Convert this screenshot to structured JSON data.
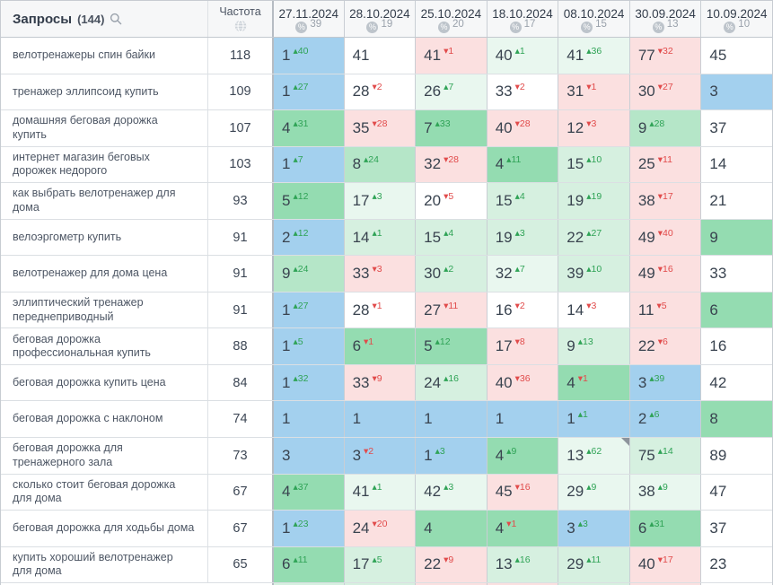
{
  "header": {
    "queries_label": "Запросы",
    "queries_count": "(144)",
    "frequency_label": "Частота",
    "icons": {
      "search": "magnifier-icon",
      "frequency": "globe-icon",
      "percent": "percent-icon",
      "note": "corner-note-marker"
    },
    "date_columns": [
      {
        "date": "27.11.2024",
        "count": "39"
      },
      {
        "date": "28.10.2024",
        "count": "19"
      },
      {
        "date": "25.10.2024",
        "count": "20"
      },
      {
        "date": "18.10.2024",
        "count": "17"
      },
      {
        "date": "08.10.2024",
        "count": "15"
      },
      {
        "date": "30.09.2024",
        "count": "13"
      },
      {
        "date": "10.09.2024",
        "count": "10"
      }
    ]
  },
  "colors": {
    "blue": "#a3d0ee",
    "green_strong": "#94dcb1",
    "green_mid": "#b5e6c8",
    "green_light": "#d6f0e0",
    "green_pale": "#e9f7ef",
    "pink": "#fbe0e0",
    "white": "#ffffff",
    "delta_up": "#2fa356",
    "delta_down": "#e14b4b",
    "note_marker": "#8d949c"
  },
  "rows": [
    {
      "query": "велотренажеры спин байки",
      "frequency": "118",
      "cells": [
        {
          "v": "1",
          "d": 40,
          "bg": "blue"
        },
        {
          "v": "41",
          "bg": "white"
        },
        {
          "v": "41",
          "d": -1,
          "bg": "pink"
        },
        {
          "v": "40",
          "d": 1,
          "bg": "green_pale"
        },
        {
          "v": "41",
          "d": 36,
          "bg": "green_pale"
        },
        {
          "v": "77",
          "d": -32,
          "bg": "pink"
        },
        {
          "v": "45",
          "bg": "white"
        }
      ]
    },
    {
      "query": "тренажер эллипсоид купить",
      "frequency": "109",
      "cells": [
        {
          "v": "1",
          "d": 27,
          "bg": "blue"
        },
        {
          "v": "28",
          "d": -2,
          "bg": "white"
        },
        {
          "v": "26",
          "d": 7,
          "bg": "green_pale"
        },
        {
          "v": "33",
          "d": -2,
          "bg": "white"
        },
        {
          "v": "31",
          "d": -1,
          "bg": "pink"
        },
        {
          "v": "30",
          "d": -27,
          "bg": "pink"
        },
        {
          "v": "3",
          "bg": "blue"
        }
      ]
    },
    {
      "query": "домашняя беговая дорожка купить",
      "frequency": "107",
      "cells": [
        {
          "v": "4",
          "d": 31,
          "bg": "green_strong"
        },
        {
          "v": "35",
          "d": -28,
          "bg": "pink"
        },
        {
          "v": "7",
          "d": 33,
          "bg": "green_strong"
        },
        {
          "v": "40",
          "d": -28,
          "bg": "pink"
        },
        {
          "v": "12",
          "d": -3,
          "bg": "pink"
        },
        {
          "v": "9",
          "d": 28,
          "bg": "green_mid"
        },
        {
          "v": "37",
          "bg": "white"
        }
      ]
    },
    {
      "query": "интернет магазин беговых дорожек недорого",
      "frequency": "103",
      "cells": [
        {
          "v": "1",
          "d": 7,
          "bg": "blue"
        },
        {
          "v": "8",
          "d": 24,
          "bg": "green_mid"
        },
        {
          "v": "32",
          "d": -28,
          "bg": "pink"
        },
        {
          "v": "4",
          "d": 11,
          "bg": "green_strong"
        },
        {
          "v": "15",
          "d": 10,
          "bg": "green_light"
        },
        {
          "v": "25",
          "d": -11,
          "bg": "pink"
        },
        {
          "v": "14",
          "bg": "white"
        }
      ]
    },
    {
      "query": "как выбрать велотренажер для дома",
      "frequency": "93",
      "cells": [
        {
          "v": "5",
          "d": 12,
          "bg": "green_strong"
        },
        {
          "v": "17",
          "d": 3,
          "bg": "green_pale"
        },
        {
          "v": "20",
          "d": -5,
          "bg": "white"
        },
        {
          "v": "15",
          "d": 4,
          "bg": "green_light"
        },
        {
          "v": "19",
          "d": 19,
          "bg": "green_light"
        },
        {
          "v": "38",
          "d": -17,
          "bg": "pink"
        },
        {
          "v": "21",
          "bg": "white"
        }
      ]
    },
    {
      "query": "велоэргометр купить",
      "frequency": "91",
      "cells": [
        {
          "v": "2",
          "d": 12,
          "bg": "blue"
        },
        {
          "v": "14",
          "d": 1,
          "bg": "green_light"
        },
        {
          "v": "15",
          "d": 4,
          "bg": "green_light"
        },
        {
          "v": "19",
          "d": 3,
          "bg": "green_light"
        },
        {
          "v": "22",
          "d": 27,
          "bg": "green_light"
        },
        {
          "v": "49",
          "d": -40,
          "bg": "pink"
        },
        {
          "v": "9",
          "bg": "green_strong"
        }
      ]
    },
    {
      "query": "велотренажер для дома цена",
      "frequency": "91",
      "cells": [
        {
          "v": "9",
          "d": 24,
          "bg": "green_mid"
        },
        {
          "v": "33",
          "d": -3,
          "bg": "pink"
        },
        {
          "v": "30",
          "d": 2,
          "bg": "green_light"
        },
        {
          "v": "32",
          "d": 7,
          "bg": "green_pale"
        },
        {
          "v": "39",
          "d": 10,
          "bg": "green_light"
        },
        {
          "v": "49",
          "d": -16,
          "bg": "pink"
        },
        {
          "v": "33",
          "bg": "white"
        }
      ]
    },
    {
      "query": "эллиптический тренажер переднеприводный",
      "frequency": "91",
      "cells": [
        {
          "v": "1",
          "d": 27,
          "bg": "blue"
        },
        {
          "v": "28",
          "d": -1,
          "bg": "white"
        },
        {
          "v": "27",
          "d": -11,
          "bg": "pink"
        },
        {
          "v": "16",
          "d": -2,
          "bg": "white"
        },
        {
          "v": "14",
          "d": -3,
          "bg": "white"
        },
        {
          "v": "11",
          "d": -5,
          "bg": "pink"
        },
        {
          "v": "6",
          "bg": "green_strong"
        }
      ]
    },
    {
      "query": "беговая дорожка профессиональная купить",
      "frequency": "88",
      "cells": [
        {
          "v": "1",
          "d": 5,
          "bg": "blue"
        },
        {
          "v": "6",
          "d": -1,
          "bg": "green_strong"
        },
        {
          "v": "5",
          "d": 12,
          "bg": "green_strong"
        },
        {
          "v": "17",
          "d": -8,
          "bg": "pink"
        },
        {
          "v": "9",
          "d": 13,
          "bg": "green_light"
        },
        {
          "v": "22",
          "d": -6,
          "bg": "pink"
        },
        {
          "v": "16",
          "bg": "white"
        }
      ]
    },
    {
      "query": "беговая дорожка купить цена",
      "frequency": "84",
      "cells": [
        {
          "v": "1",
          "d": 32,
          "bg": "blue"
        },
        {
          "v": "33",
          "d": -9,
          "bg": "pink"
        },
        {
          "v": "24",
          "d": 16,
          "bg": "green_light"
        },
        {
          "v": "40",
          "d": -36,
          "bg": "pink"
        },
        {
          "v": "4",
          "d": -1,
          "bg": "green_strong"
        },
        {
          "v": "3",
          "d": 39,
          "bg": "blue"
        },
        {
          "v": "42",
          "bg": "white"
        }
      ]
    },
    {
      "query": "беговая дорожка с наклоном",
      "frequency": "74",
      "cells": [
        {
          "v": "1",
          "bg": "blue"
        },
        {
          "v": "1",
          "bg": "blue"
        },
        {
          "v": "1",
          "bg": "blue"
        },
        {
          "v": "1",
          "bg": "blue"
        },
        {
          "v": "1",
          "d": 1,
          "bg": "blue"
        },
        {
          "v": "2",
          "d": 6,
          "bg": "blue"
        },
        {
          "v": "8",
          "bg": "green_strong"
        }
      ]
    },
    {
      "query": "беговая дорожка для тренажерного зала",
      "frequency": "73",
      "cells": [
        {
          "v": "3",
          "bg": "blue"
        },
        {
          "v": "3",
          "d": -2,
          "bg": "blue"
        },
        {
          "v": "1",
          "d": 3,
          "bg": "blue"
        },
        {
          "v": "4",
          "d": 9,
          "bg": "green_strong"
        },
        {
          "v": "13",
          "d": 62,
          "bg": "green_pale",
          "note": true
        },
        {
          "v": "75",
          "d": 14,
          "bg": "green_light"
        },
        {
          "v": "89",
          "bg": "white"
        }
      ]
    },
    {
      "query": "сколько стоит беговая дорожка для дома",
      "frequency": "67",
      "cells": [
        {
          "v": "4",
          "d": 37,
          "bg": "green_strong"
        },
        {
          "v": "41",
          "d": 1,
          "bg": "green_pale"
        },
        {
          "v": "42",
          "d": 3,
          "bg": "green_pale"
        },
        {
          "v": "45",
          "d": -16,
          "bg": "pink"
        },
        {
          "v": "29",
          "d": 9,
          "bg": "green_pale"
        },
        {
          "v": "38",
          "d": 9,
          "bg": "green_pale"
        },
        {
          "v": "47",
          "bg": "white"
        }
      ]
    },
    {
      "query": "беговая дорожка для ходьбы дома",
      "frequency": "67",
      "cells": [
        {
          "v": "1",
          "d": 23,
          "bg": "blue"
        },
        {
          "v": "24",
          "d": -20,
          "bg": "pink"
        },
        {
          "v": "4",
          "bg": "green_strong"
        },
        {
          "v": "4",
          "d": -1,
          "bg": "green_strong"
        },
        {
          "v": "3",
          "d": 3,
          "bg": "blue"
        },
        {
          "v": "6",
          "d": 31,
          "bg": "green_strong"
        },
        {
          "v": "37",
          "bg": "white"
        }
      ]
    },
    {
      "query": "купить хороший велотренажер для дома",
      "frequency": "65",
      "cells": [
        {
          "v": "6",
          "d": 11,
          "bg": "green_strong"
        },
        {
          "v": "17",
          "d": 5,
          "bg": "green_light"
        },
        {
          "v": "22",
          "d": -9,
          "bg": "pink"
        },
        {
          "v": "13",
          "d": 16,
          "bg": "green_light"
        },
        {
          "v": "29",
          "d": 11,
          "bg": "green_light"
        },
        {
          "v": "40",
          "d": -17,
          "bg": "pink"
        },
        {
          "v": "23",
          "bg": "white"
        }
      ]
    }
  ],
  "partial_row": [
    "green_light",
    "green_light",
    "pink",
    "pink",
    "green_light",
    "pink",
    "white"
  ]
}
